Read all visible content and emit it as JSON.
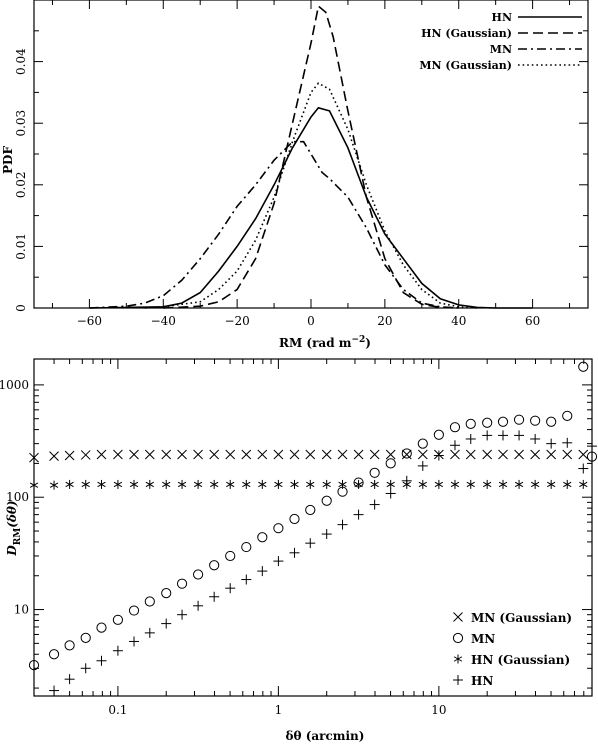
{
  "chart_data": [
    {
      "type": "line",
      "xlabel": "RM (rad m",
      "xlabel_sup": "−2",
      "xlabel_close": ")",
      "ylabel": "PDF",
      "xlim": [
        -75,
        75
      ],
      "ylim": [
        0,
        0.05
      ],
      "xticks": [
        -60,
        -40,
        -20,
        0,
        20,
        40,
        60
      ],
      "xtick_labels": [
        "−60",
        "−40",
        "−20",
        "0",
        "20",
        "40",
        "60"
      ],
      "yticks": [
        0,
        0.01,
        0.02,
        0.03,
        0.04
      ],
      "ytick_labels": [
        "0",
        "0.01",
        "0.02",
        "0.03",
        "0.04"
      ],
      "legend_position": "top-right",
      "series": [
        {
          "name": "HN",
          "style": "solid",
          "x": [
            -60,
            -40,
            -35,
            -30,
            -25,
            -20,
            -15,
            -10,
            -5,
            0,
            2,
            5,
            10,
            15,
            20,
            25,
            30,
            35,
            40,
            45,
            50,
            60
          ],
          "y": [
            0,
            0.0002,
            0.0008,
            0.0025,
            0.006,
            0.01,
            0.0145,
            0.02,
            0.026,
            0.031,
            0.0325,
            0.032,
            0.026,
            0.018,
            0.012,
            0.008,
            0.004,
            0.0015,
            0.0005,
            0.0001,
            0,
            0
          ]
        },
        {
          "name": "HN (Gaussian)",
          "style": "dashed",
          "x": [
            -40,
            -30,
            -25,
            -20,
            -15,
            -10,
            -5,
            0,
            2,
            4,
            6,
            10,
            15,
            20,
            25,
            30,
            35,
            40
          ],
          "y": [
            0,
            0.0003,
            0.001,
            0.003,
            0.008,
            0.017,
            0.03,
            0.043,
            0.049,
            0.048,
            0.044,
            0.032,
            0.018,
            0.008,
            0.0025,
            0.0006,
            0.0001,
            0
          ]
        },
        {
          "name": "MN",
          "style": "dashdot",
          "x": [
            -60,
            -50,
            -45,
            -40,
            -35,
            -30,
            -25,
            -20,
            -15,
            -10,
            -5,
            -2,
            0,
            3,
            5,
            10,
            15,
            20,
            25,
            30,
            35,
            40
          ],
          "y": [
            0,
            0.0003,
            0.0008,
            0.002,
            0.0045,
            0.008,
            0.012,
            0.0165,
            0.02,
            0.024,
            0.027,
            0.027,
            0.025,
            0.022,
            0.021,
            0.018,
            0.013,
            0.007,
            0.003,
            0.0008,
            0.0002,
            0
          ]
        },
        {
          "name": "MN (Gaussian)",
          "style": "dotted",
          "x": [
            -45,
            -40,
            -30,
            -25,
            -20,
            -15,
            -10,
            -5,
            0,
            2,
            5,
            10,
            15,
            20,
            25,
            30,
            35,
            40,
            45
          ],
          "y": [
            0,
            0.0002,
            0.001,
            0.003,
            0.006,
            0.011,
            0.018,
            0.027,
            0.035,
            0.0365,
            0.0355,
            0.029,
            0.02,
            0.0125,
            0.007,
            0.003,
            0.0008,
            0.0002,
            0
          ]
        }
      ]
    },
    {
      "type": "scatter",
      "xlabel": "δθ (arcmin)",
      "ylabel": "D",
      "ylabel_sub": "RM",
      "ylabel_tail": "(δθ)",
      "x_scale": "log",
      "y_scale": "log",
      "xlim": [
        0.03,
        90
      ],
      "ylim": [
        1.7,
        1700
      ],
      "xticks": [
        0.1,
        1,
        10
      ],
      "xtick_labels": [
        "0.1",
        "1",
        "10"
      ],
      "yticks": [
        10,
        100,
        1000
      ],
      "ytick_labels": [
        "10",
        "100",
        "1000"
      ],
      "legend_position": "bottom-right",
      "series": [
        {
          "name": "MN (Gaussian)",
          "marker": "x",
          "x": [
            0.03,
            0.04,
            0.05,
            0.063,
            0.079,
            0.1,
            0.126,
            0.158,
            0.2,
            0.251,
            0.316,
            0.398,
            0.501,
            0.631,
            0.794,
            1.0,
            1.26,
            1.58,
            2.0,
            2.51,
            3.16,
            3.98,
            5.01,
            6.31,
            7.94,
            10,
            12.6,
            15.8,
            20,
            25.1,
            31.6,
            39.8,
            50.1,
            63.1,
            79.4
          ],
          "y": [
            225,
            232,
            235,
            238,
            240,
            240,
            240,
            240,
            240,
            240,
            240,
            240,
            240,
            240,
            240,
            240,
            240,
            240,
            240,
            240,
            240,
            240,
            240,
            240,
            240,
            240,
            240,
            240,
            240,
            240,
            240,
            240,
            240,
            240,
            240
          ]
        },
        {
          "name": "MN",
          "marker": "circle",
          "x": [
            0.03,
            0.04,
            0.05,
            0.063,
            0.079,
            0.1,
            0.126,
            0.158,
            0.2,
            0.251,
            0.316,
            0.398,
            0.501,
            0.631,
            0.794,
            1.0,
            1.26,
            1.58,
            2.0,
            2.51,
            3.16,
            3.98,
            5.01,
            6.31,
            7.94,
            10,
            12.6,
            15.8,
            20,
            25.1,
            31.6,
            39.8,
            50.1,
            63.1,
            79.4,
            90
          ],
          "y": [
            3.2,
            4.0,
            4.8,
            5.6,
            6.9,
            8.1,
            9.8,
            11.8,
            14.0,
            17.0,
            20.5,
            24.8,
            30,
            36,
            44,
            53,
            64,
            77,
            93,
            112,
            135,
            165,
            200,
            245,
            300,
            360,
            420,
            450,
            460,
            470,
            490,
            480,
            470,
            530,
            1450,
            230
          ]
        },
        {
          "name": "HN (Gaussian)",
          "marker": "asterisk",
          "x": [
            0.03,
            0.04,
            0.05,
            0.063,
            0.079,
            0.1,
            0.126,
            0.158,
            0.2,
            0.251,
            0.316,
            0.398,
            0.501,
            0.631,
            0.794,
            1.0,
            1.26,
            1.58,
            2.0,
            2.51,
            3.16,
            3.98,
            5.01,
            6.31,
            7.94,
            10,
            12.6,
            15.8,
            20,
            25.1,
            31.6,
            39.8,
            50.1,
            63.1,
            79.4
          ],
          "y": [
            128,
            128,
            130,
            130,
            130,
            130,
            130,
            130,
            130,
            130,
            130,
            130,
            130,
            130,
            130,
            130,
            130,
            130,
            130,
            130,
            130,
            130,
            130,
            130,
            130,
            130,
            130,
            130,
            130,
            130,
            130,
            130,
            130,
            130,
            130
          ]
        },
        {
          "name": "HN",
          "marker": "plus",
          "x": [
            0.04,
            0.05,
            0.063,
            0.079,
            0.1,
            0.126,
            0.158,
            0.2,
            0.251,
            0.316,
            0.398,
            0.501,
            0.631,
            0.794,
            1.0,
            1.26,
            1.58,
            2.0,
            2.51,
            3.16,
            3.98,
            5.01,
            6.31,
            7.94,
            10,
            12.6,
            15.8,
            20,
            25.1,
            31.6,
            39.8,
            50.1,
            63.1,
            79.4,
            90
          ],
          "y": [
            1.9,
            2.4,
            3.0,
            3.5,
            4.3,
            5.2,
            6.2,
            7.5,
            9.0,
            10.8,
            13.0,
            15.5,
            18.5,
            22,
            27,
            32,
            39,
            47,
            57,
            70,
            86,
            108,
            140,
            190,
            235,
            290,
            330,
            355,
            355,
            355,
            330,
            300,
            305,
            180,
            285
          ]
        }
      ]
    }
  ]
}
